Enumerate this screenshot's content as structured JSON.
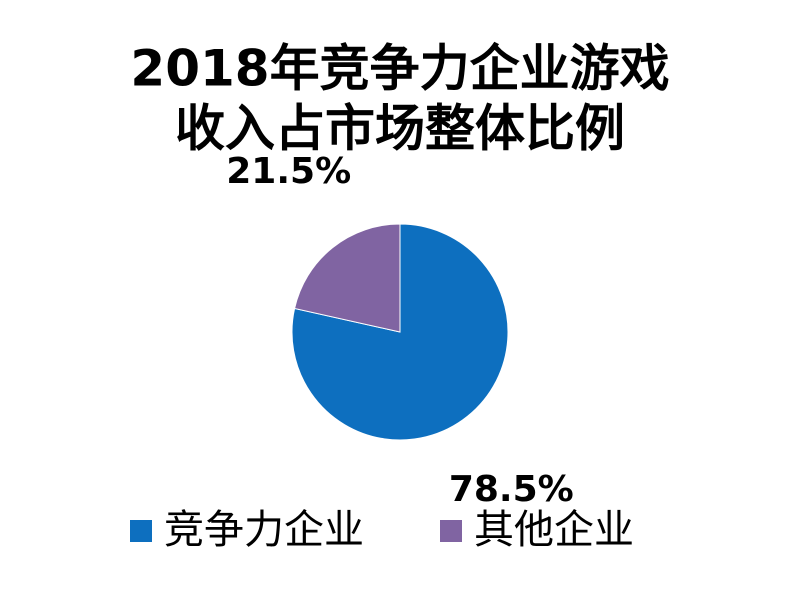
{
  "chart_data": {
    "type": "pie",
    "title": [
      "2018年竞争力企业游戏",
      "收入占市场整体比例"
    ],
    "categories": [
      "竞争力企业",
      "其他企业"
    ],
    "values": [
      78.5,
      21.5
    ],
    "value_labels": [
      "78.5%",
      "21.5%"
    ],
    "colors": [
      "#0d6fbf",
      "#8064a2"
    ],
    "legend": "bottom"
  }
}
